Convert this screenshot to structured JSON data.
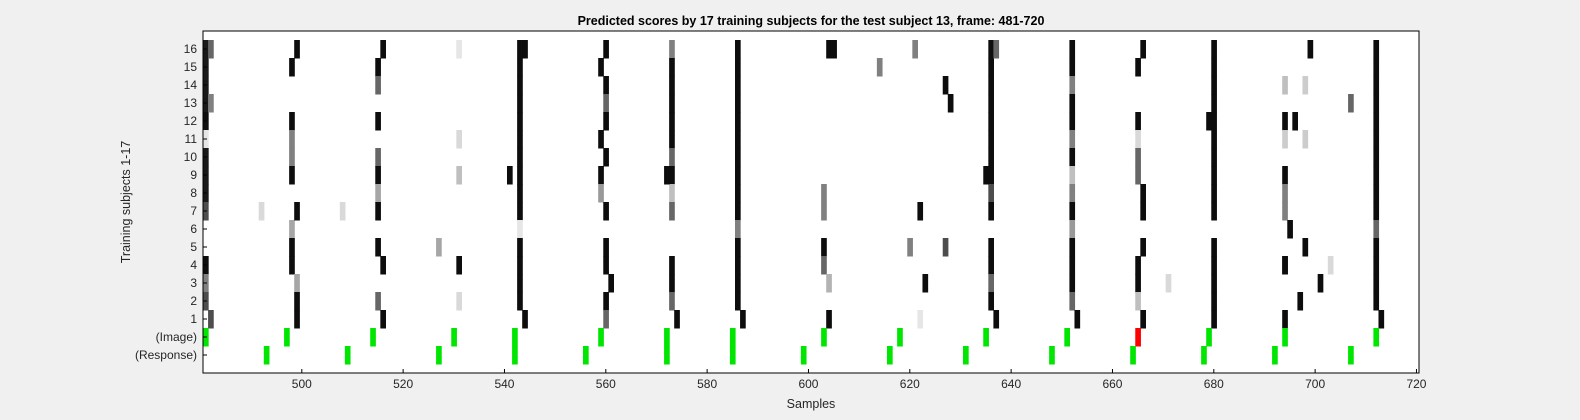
{
  "chart_data": {
    "type": "heatmap",
    "title": "Predicted scores by 17 training subjects for the test subject 13, frame: 481-720",
    "xlabel": "Samples",
    "ylabel": "Training subjects 1-17",
    "xlim": [
      481,
      720
    ],
    "xticks": [
      500,
      520,
      540,
      560,
      580,
      600,
      620,
      640,
      660,
      680,
      700,
      720
    ],
    "row_labels": [
      "16",
      "15",
      "14",
      "13",
      "12",
      "11",
      "10",
      "9",
      "8",
      "7",
      "6",
      "5",
      "4",
      "3",
      "2",
      "1",
      "(Image)",
      "(Response)"
    ],
    "colormap": "gray (0 = white, 1 = black)",
    "grid": false,
    "colors": {
      "background": "#ffffff",
      "correct": "#00e600",
      "incorrect": "#ff0000",
      "axis": "#000000",
      "figure": "#f0f0f0"
    },
    "score_bands": [
      {
        "x": 481,
        "levels": [
          0.9,
          0.9,
          0.9,
          0.9,
          0.95,
          0.1,
          0.9,
          0.9,
          0.9,
          0.7,
          0.0,
          0.0,
          0.95,
          0.5,
          0.7,
          0.0
        ]
      },
      {
        "x": 482,
        "levels": [
          0.6,
          0.0,
          0.0,
          0.5,
          0.0,
          0.0,
          0.0,
          0.0,
          0.0,
          0.0,
          0.0,
          0.0,
          0.0,
          0.0,
          0.0,
          0.7
        ]
      },
      {
        "x": 498,
        "levels": [
          0.0,
          0.95,
          0.0,
          0.0,
          0.95,
          0.5,
          0.5,
          0.95,
          0.0,
          0.0,
          0.35,
          0.95,
          0.95,
          0.0,
          0.0,
          0.0
        ]
      },
      {
        "x": 499,
        "levels": [
          0.95,
          0.0,
          0.0,
          0.0,
          0.0,
          0.0,
          0.0,
          0.0,
          0.0,
          0.95,
          0.0,
          0.0,
          0.0,
          0.35,
          0.95,
          0.95
        ]
      },
      {
        "x": 515,
        "levels": [
          0.0,
          0.95,
          0.6,
          0.0,
          0.95,
          0.0,
          0.6,
          0.95,
          0.35,
          0.95,
          0.0,
          0.95,
          0.0,
          0.0,
          0.6,
          0.0
        ]
      },
      {
        "x": 516,
        "levels": [
          0.95,
          0.0,
          0.0,
          0.0,
          0.0,
          0.0,
          0.0,
          0.0,
          0.0,
          0.0,
          0.0,
          0.0,
          0.95,
          0.0,
          0.0,
          0.95
        ]
      },
      {
        "x": 531,
        "levels": [
          0.1,
          0.0,
          0.0,
          0.0,
          0.0,
          0.15,
          0.0,
          0.25,
          0.0,
          0.0,
          0.0,
          0.0,
          0.95,
          0.0,
          0.15,
          0.0
        ]
      },
      {
        "x": 543,
        "levels": [
          0.95,
          0.95,
          0.95,
          0.95,
          0.95,
          0.95,
          0.95,
          0.95,
          0.95,
          0.95,
          0.1,
          0.95,
          0.95,
          0.95,
          0.95,
          0.0
        ]
      },
      {
        "x": 544,
        "levels": [
          0.95,
          0.0,
          0.0,
          0.0,
          0.0,
          0.0,
          0.0,
          0.0,
          0.0,
          0.0,
          0.0,
          0.0,
          0.0,
          0.0,
          0.0,
          0.95
        ]
      },
      {
        "x": 559,
        "levels": [
          0.0,
          0.95,
          0.0,
          0.0,
          0.0,
          0.95,
          0.0,
          0.95,
          0.4,
          0.0,
          0.0,
          0.0,
          0.0,
          0.0,
          0.0,
          0.0
        ]
      },
      {
        "x": 560,
        "levels": [
          0.95,
          0.0,
          0.95,
          0.6,
          0.95,
          0.0,
          0.95,
          0.0,
          0.0,
          0.95,
          0.0,
          0.95,
          0.95,
          0.0,
          0.95,
          0.6
        ]
      },
      {
        "x": 561,
        "levels": [
          0.0,
          0.0,
          0.0,
          0.0,
          0.0,
          0.0,
          0.0,
          0.0,
          0.0,
          0.0,
          0.0,
          0.0,
          0.0,
          0.95,
          0.0,
          0.0
        ]
      },
      {
        "x": 573,
        "levels": [
          0.5,
          0.95,
          0.95,
          0.95,
          0.95,
          0.95,
          0.6,
          0.95,
          0.25,
          0.6,
          0.0,
          0.0,
          0.95,
          0.95,
          0.6,
          0.0
        ]
      },
      {
        "x": 574,
        "levels": [
          0.0,
          0.0,
          0.0,
          0.0,
          0.0,
          0.0,
          0.0,
          0.0,
          0.0,
          0.0,
          0.0,
          0.0,
          0.0,
          0.0,
          0.0,
          0.95
        ]
      },
      {
        "x": 586,
        "levels": [
          0.95,
          0.95,
          0.95,
          0.95,
          0.95,
          0.95,
          0.95,
          0.95,
          0.95,
          0.95,
          0.5,
          0.95,
          0.95,
          0.95,
          0.95,
          0.0
        ]
      },
      {
        "x": 587,
        "levels": [
          0.0,
          0.0,
          0.0,
          0.0,
          0.0,
          0.0,
          0.0,
          0.0,
          0.0,
          0.0,
          0.0,
          0.0,
          0.0,
          0.0,
          0.0,
          0.95
        ]
      },
      {
        "x": 603,
        "levels": [
          0.0,
          0.0,
          0.0,
          0.0,
          0.0,
          0.0,
          0.0,
          0.0,
          0.5,
          0.5,
          0.0,
          0.95,
          0.6,
          0.0,
          0.0,
          0.0
        ]
      },
      {
        "x": 604,
        "levels": [
          0.95,
          0.0,
          0.0,
          0.0,
          0.0,
          0.0,
          0.0,
          0.0,
          0.0,
          0.0,
          0.0,
          0.0,
          0.0,
          0.3,
          0.0,
          0.95
        ]
      },
      {
        "x": 636,
        "levels": [
          0.95,
          0.95,
          0.95,
          0.95,
          0.95,
          0.95,
          0.95,
          0.95,
          0.7,
          0.95,
          0.0,
          0.95,
          0.95,
          0.6,
          0.95,
          0.0
        ]
      },
      {
        "x": 637,
        "levels": [
          0.6,
          0.0,
          0.0,
          0.0,
          0.0,
          0.0,
          0.0,
          0.0,
          0.0,
          0.0,
          0.0,
          0.0,
          0.0,
          0.0,
          0.0,
          0.95
        ]
      },
      {
        "x": 652,
        "levels": [
          0.95,
          0.95,
          0.5,
          0.95,
          0.95,
          0.5,
          0.95,
          0.25,
          0.5,
          0.95,
          0.4,
          0.95,
          0.95,
          0.95,
          0.6,
          0.0
        ]
      },
      {
        "x": 653,
        "levels": [
          0.0,
          0.0,
          0.0,
          0.0,
          0.0,
          0.0,
          0.0,
          0.0,
          0.0,
          0.0,
          0.0,
          0.0,
          0.0,
          0.0,
          0.0,
          0.95
        ]
      },
      {
        "x": 665,
        "levels": [
          0.0,
          0.95,
          0.0,
          0.0,
          0.95,
          0.15,
          0.6,
          0.6,
          0.0,
          0.0,
          0.0,
          0.0,
          0.95,
          0.95,
          0.25,
          0.0
        ]
      },
      {
        "x": 666,
        "levels": [
          0.95,
          0.0,
          0.0,
          0.0,
          0.0,
          0.0,
          0.0,
          0.0,
          0.95,
          0.95,
          0.0,
          0.95,
          0.0,
          0.0,
          0.0,
          0.95
        ]
      },
      {
        "x": 680,
        "levels": [
          0.95,
          0.95,
          0.95,
          0.95,
          0.95,
          0.95,
          0.95,
          0.95,
          0.95,
          0.95,
          0.0,
          0.95,
          0.95,
          0.95,
          0.95,
          0.95
        ]
      },
      {
        "x": 694,
        "levels": [
          0.0,
          0.0,
          0.25,
          0.0,
          0.95,
          0.2,
          0.0,
          0.95,
          0.5,
          0.5,
          0.0,
          0.0,
          0.95,
          0.0,
          0.0,
          0.95
        ]
      },
      {
        "x": 712,
        "levels": [
          0.95,
          0.95,
          0.95,
          0.95,
          0.95,
          0.95,
          0.95,
          0.95,
          0.95,
          0.95,
          0.6,
          0.95,
          0.95,
          0.95,
          0.95,
          0.0
        ]
      },
      {
        "x": 713,
        "levels": [
          0.0,
          0.0,
          0.0,
          0.0,
          0.0,
          0.0,
          0.0,
          0.0,
          0.0,
          0.0,
          0.0,
          0.0,
          0.0,
          0.0,
          0.0,
          0.95
        ]
      }
    ],
    "isolated_cells": [
      {
        "row": "16",
        "x": 531,
        "level": 0.1
      },
      {
        "row": "16",
        "x": 605,
        "level": 0.95
      },
      {
        "row": "16",
        "x": 621,
        "level": 0.5
      },
      {
        "row": "16",
        "x": 699,
        "level": 0.95
      },
      {
        "row": "15",
        "x": 614,
        "level": 0.5
      },
      {
        "row": "14",
        "x": 627,
        "level": 0.95
      },
      {
        "row": "14",
        "x": 698,
        "level": 0.2
      },
      {
        "row": "13",
        "x": 628,
        "level": 0.95
      },
      {
        "row": "13",
        "x": 707,
        "level": 0.6
      },
      {
        "row": "12",
        "x": 679,
        "level": 0.95
      },
      {
        "row": "12",
        "x": 696,
        "level": 0.95
      },
      {
        "row": "11",
        "x": 698,
        "level": 0.2
      },
      {
        "row": "9",
        "x": 541,
        "level": 0.95
      },
      {
        "row": "9",
        "x": 572,
        "level": 0.95
      },
      {
        "row": "9",
        "x": 635,
        "level": 0.95
      },
      {
        "row": "7",
        "x": 492,
        "level": 0.15
      },
      {
        "row": "7",
        "x": 508,
        "level": 0.15
      },
      {
        "row": "7",
        "x": 622,
        "level": 0.95
      },
      {
        "row": "6",
        "x": 695,
        "level": 0.95
      },
      {
        "row": "5",
        "x": 527,
        "level": 0.35
      },
      {
        "row": "5",
        "x": 620,
        "level": 0.5
      },
      {
        "row": "5",
        "x": 627,
        "level": 0.7
      },
      {
        "row": "5",
        "x": 698,
        "level": 0.95
      },
      {
        "row": "4",
        "x": 694,
        "level": 0.95
      },
      {
        "row": "4",
        "x": 703,
        "level": 0.15
      },
      {
        "row": "3",
        "x": 623,
        "level": 0.95
      },
      {
        "row": "3",
        "x": 671,
        "level": 0.15
      },
      {
        "row": "3",
        "x": 701,
        "level": 0.95
      },
      {
        "row": "2",
        "x": 697,
        "level": 0.95
      },
      {
        "row": "1",
        "x": 622,
        "level": 0.1
      }
    ],
    "image_events": [
      {
        "x": 481,
        "status": "correct"
      },
      {
        "x": 497,
        "status": "correct"
      },
      {
        "x": 514,
        "status": "correct"
      },
      {
        "x": 530,
        "status": "correct"
      },
      {
        "x": 542,
        "status": "correct"
      },
      {
        "x": 559,
        "status": "correct"
      },
      {
        "x": 572,
        "status": "correct"
      },
      {
        "x": 585,
        "status": "correct"
      },
      {
        "x": 603,
        "status": "correct"
      },
      {
        "x": 618,
        "status": "correct"
      },
      {
        "x": 635,
        "status": "correct"
      },
      {
        "x": 651,
        "status": "correct"
      },
      {
        "x": 665,
        "status": "incorrect"
      },
      {
        "x": 679,
        "status": "correct"
      },
      {
        "x": 694,
        "status": "correct"
      },
      {
        "x": 712,
        "status": "correct"
      }
    ],
    "response_events": [
      493,
      509,
      527,
      542,
      556,
      572,
      585,
      599,
      616,
      631,
      648,
      664,
      678,
      692,
      707
    ]
  }
}
